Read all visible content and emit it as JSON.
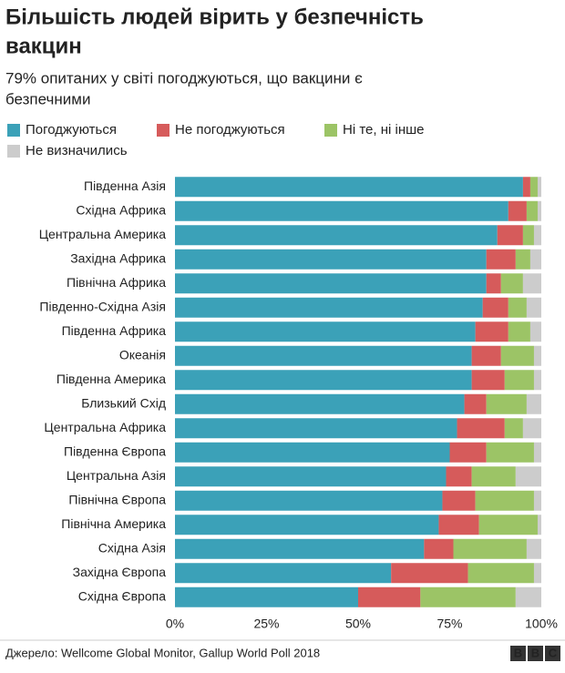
{
  "chart_data": {
    "type": "stacked-barh",
    "title": [
      "Більшість людей вірить у безпечність",
      "вакцин"
    ],
    "subtitle": [
      "79% опитаних у світі погоджуються, що вакцини є",
      "безпечними"
    ],
    "categories": [
      "Південна Азія",
      "Східна Африка",
      "Центральна Америка",
      "Західна Африка",
      "Північна Африка",
      "Південно-Східна Азія",
      "Південна Африка",
      "Океанія",
      "Південна Америка",
      "Близький Схід",
      "Центральна Африка",
      "Південна Європа",
      "Центральна Азія",
      "Північна Європа",
      "Північна Америка",
      "Східна Азія",
      "Західна Європа",
      "Східна Європа"
    ],
    "series": [
      {
        "name": "Погоджуються",
        "color": "#3ba1b8",
        "values": [
          95,
          91,
          88,
          85,
          85,
          84,
          82,
          81,
          81,
          79,
          77,
          75,
          74,
          73,
          72,
          68,
          59,
          50
        ]
      },
      {
        "name": "Не погоджуються",
        "color": "#d65b5b",
        "values": [
          2,
          5,
          7,
          8,
          4,
          7,
          9,
          8,
          9,
          6,
          13,
          10,
          7,
          9,
          11,
          8,
          21,
          17
        ]
      },
      {
        "name": "Ні те, ні інше",
        "color": "#9cc466",
        "values": [
          2,
          3,
          3,
          4,
          6,
          5,
          6,
          9,
          8,
          11,
          5,
          13,
          12,
          16,
          16,
          20,
          18,
          26
        ]
      },
      {
        "name": "Не визначились",
        "color": "#cccccc",
        "values": [
          1,
          1,
          2,
          3,
          5,
          4,
          3,
          2,
          2,
          4,
          5,
          2,
          7,
          2,
          1,
          4,
          2,
          7
        ]
      }
    ],
    "xlim": [
      0,
      100
    ],
    "xticks": [
      {
        "value": 0,
        "label": "0%"
      },
      {
        "value": 25,
        "label": "25%"
      },
      {
        "value": 50,
        "label": "50%"
      },
      {
        "value": 75,
        "label": "75%"
      },
      {
        "value": 100,
        "label": "100%"
      }
    ],
    "grid": false,
    "source": "Джерело: Wellcome Global Monitor, Gallup World Poll 2018",
    "logo": [
      "B",
      "B",
      "C"
    ]
  }
}
